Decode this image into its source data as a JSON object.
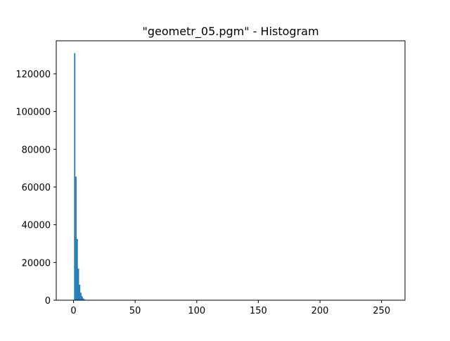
{
  "chart_data": {
    "type": "bar",
    "title": "\"geometr_05.pgm\" - Histogram",
    "xlabel": "",
    "ylabel": "",
    "xlim": [
      -14,
      269
    ],
    "ylim": [
      0,
      137500
    ],
    "x_ticks": [
      0,
      50,
      100,
      150,
      200,
      250
    ],
    "y_ticks": [
      0,
      20000,
      40000,
      60000,
      80000,
      100000,
      120000
    ],
    "bar_color": "#1f77b4",
    "grid": false,
    "legend": "none",
    "bins": [
      {
        "x": 1,
        "value": 131000
      },
      {
        "x": 2,
        "value": 65500
      },
      {
        "x": 3,
        "value": 32500
      },
      {
        "x": 4,
        "value": 16800
      },
      {
        "x": 5,
        "value": 8200
      },
      {
        "x": 6,
        "value": 4000
      },
      {
        "x": 7,
        "value": 2100
      },
      {
        "x": 8,
        "value": 1000
      },
      {
        "x": 9,
        "value": 400
      },
      {
        "x": 10,
        "value": 150
      }
    ]
  }
}
